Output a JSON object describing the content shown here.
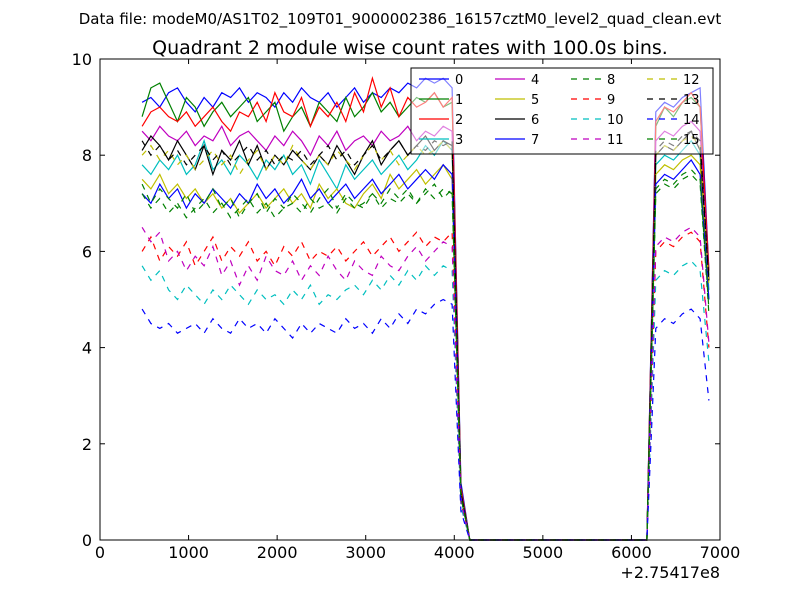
{
  "header": {
    "data_file": "Data file: modeM0/AS1T02_109T01_9000002386_16157cztM0_level2_quad_clean.evt"
  },
  "chart_data": {
    "type": "line",
    "title": "Quadrant 2 module wise count rates with 100.0s bins.",
    "xlabel": "",
    "ylabel": "",
    "x_offset_label": "+2.75417e8",
    "xlim": [
      0,
      7000
    ],
    "ylim": [
      0,
      10
    ],
    "x_ticks": [
      0,
      1000,
      2000,
      3000,
      4000,
      5000,
      6000,
      7000
    ],
    "y_ticks": [
      0,
      2,
      4,
      6,
      8,
      10
    ],
    "grid": false,
    "legend_position": "top-right",
    "legend_columns": 4,
    "x": [
      475,
      575,
      675,
      775,
      875,
      975,
      1075,
      1175,
      1275,
      1375,
      1475,
      1575,
      1675,
      1775,
      1875,
      1975,
      2075,
      2175,
      2275,
      2375,
      2475,
      2575,
      2675,
      2775,
      2875,
      2975,
      3075,
      3175,
      3275,
      3375,
      3475,
      3575,
      3675,
      3775,
      3875,
      3975,
      4075,
      4175,
      4275,
      4375,
      4475,
      4575,
      4675,
      4775,
      4875,
      4975,
      5075,
      5175,
      5275,
      5375,
      5475,
      5575,
      5675,
      5775,
      5875,
      5975,
      6075,
      6175,
      6275,
      6375,
      6475,
      6575,
      6675,
      6775,
      6875
    ],
    "series": [
      {
        "name": "0",
        "color": "#0000ff",
        "dash": "solid",
        "values": [
          9.1,
          9.2,
          9.0,
          9.3,
          9.4,
          9.1,
          8.9,
          9.2,
          9.0,
          9.3,
          9.2,
          9.4,
          9.1,
          9.3,
          9.2,
          9.0,
          9.3,
          9.1,
          9.4,
          9.2,
          9.1,
          9.3,
          9.0,
          9.2,
          9.4,
          9.1,
          9.3,
          9.2,
          9.4,
          9.3,
          9.5,
          9.4,
          9.6,
          9.5,
          9.6,
          9.4,
          1.2,
          0,
          0,
          0,
          0,
          0,
          0,
          0,
          0,
          0,
          0,
          0,
          0,
          0,
          0,
          0,
          0,
          0,
          0,
          0,
          0,
          0,
          8.9,
          9.1,
          9.0,
          9.2,
          9.3,
          9.4,
          5.6
        ]
      },
      {
        "name": "1",
        "color": "#008000",
        "dash": "solid",
        "values": [
          8.8,
          9.4,
          9.5,
          9.1,
          8.7,
          9.2,
          9.0,
          8.6,
          8.9,
          9.1,
          8.8,
          9.0,
          9.2,
          8.7,
          8.9,
          9.1,
          8.5,
          8.8,
          9.0,
          8.6,
          9.1,
          8.9,
          8.7,
          9.2,
          8.8,
          9.0,
          9.3,
          8.9,
          9.1,
          8.8,
          9.0,
          9.2,
          9.1,
          9.3,
          9.0,
          9.1,
          1.1,
          0,
          0,
          0,
          0,
          0,
          0,
          0,
          0,
          0,
          0,
          0,
          0,
          0,
          0,
          0,
          0,
          0,
          0,
          0,
          0,
          0,
          8.6,
          9.0,
          8.8,
          9.1,
          9.2,
          9.0,
          5.5
        ]
      },
      {
        "name": "2",
        "color": "#ff0000",
        "dash": "solid",
        "values": [
          8.6,
          8.9,
          9.0,
          8.8,
          8.7,
          8.9,
          8.6,
          8.8,
          9.0,
          8.7,
          8.5,
          8.9,
          8.8,
          9.1,
          8.7,
          9.3,
          8.9,
          8.8,
          9.2,
          8.6,
          9.0,
          8.8,
          9.1,
          8.7,
          9.3,
          8.9,
          9.6,
          9.0,
          9.4,
          8.8,
          9.2,
          9.0,
          9.1,
          9.3,
          9.0,
          9.2,
          1.1,
          0,
          0,
          0,
          0,
          0,
          0,
          0,
          0,
          0,
          0,
          0,
          0,
          0,
          0,
          0,
          0,
          0,
          0,
          0,
          0,
          0,
          8.7,
          9.0,
          8.9,
          9.1,
          9.3,
          9.0,
          5.6
        ]
      },
      {
        "name": "3",
        "color": "#00bfbf",
        "dash": "solid",
        "values": [
          7.8,
          7.6,
          7.9,
          7.7,
          8.0,
          7.6,
          7.8,
          8.3,
          7.7,
          7.9,
          7.6,
          8.0,
          7.8,
          7.5,
          7.9,
          7.7,
          8.0,
          7.6,
          7.8,
          7.4,
          7.9,
          7.6,
          7.3,
          7.8,
          7.5,
          7.7,
          7.9,
          7.6,
          7.8,
          8.0,
          7.7,
          7.9,
          8.2,
          8.0,
          8.3,
          8.1,
          1.0,
          0,
          0,
          0,
          0,
          0,
          0,
          0,
          0,
          0,
          0,
          0,
          0,
          0,
          0,
          0,
          0,
          0,
          0,
          0,
          0,
          0,
          7.8,
          8.0,
          7.9,
          8.1,
          8.3,
          8.0,
          5.2
        ]
      },
      {
        "name": "4",
        "color": "#bf00bf",
        "dash": "solid",
        "values": [
          8.5,
          8.3,
          8.6,
          8.4,
          8.3,
          8.5,
          8.2,
          8.4,
          8.3,
          8.6,
          8.2,
          8.4,
          8.5,
          8.3,
          8.1,
          8.4,
          8.2,
          8.5,
          8.3,
          8.0,
          8.4,
          8.2,
          8.5,
          8.1,
          8.3,
          8.4,
          8.2,
          8.5,
          8.3,
          8.4,
          8.6,
          8.3,
          8.5,
          8.4,
          8.6,
          8.5,
          1.0,
          0,
          0,
          0,
          0,
          0,
          0,
          0,
          0,
          0,
          0,
          0,
          0,
          0,
          0,
          0,
          0,
          0,
          0,
          0,
          0,
          0,
          8.3,
          8.5,
          8.4,
          8.6,
          8.7,
          8.5,
          5.4
        ]
      },
      {
        "name": "5",
        "color": "#bfbf00",
        "dash": "solid",
        "values": [
          7.5,
          7.3,
          7.6,
          7.2,
          7.4,
          7.1,
          7.3,
          7.0,
          7.2,
          6.9,
          7.1,
          6.8,
          7.0,
          7.2,
          6.9,
          7.1,
          7.3,
          7.0,
          7.2,
          6.9,
          7.4,
          7.1,
          7.3,
          7.0,
          6.9,
          7.2,
          7.4,
          7.1,
          7.6,
          7.3,
          7.5,
          7.7,
          7.4,
          7.6,
          7.8,
          7.5,
          0.9,
          0,
          0,
          0,
          0,
          0,
          0,
          0,
          0,
          0,
          0,
          0,
          0,
          0,
          0,
          0,
          0,
          0,
          0,
          0,
          0,
          0,
          7.6,
          7.8,
          7.7,
          7.9,
          8.0,
          7.8,
          5.0
        ]
      },
      {
        "name": "6",
        "color": "#000000",
        "dash": "solid",
        "values": [
          8.1,
          8.4,
          8.2,
          7.9,
          8.3,
          8.0,
          7.7,
          8.2,
          7.6,
          8.1,
          7.9,
          8.3,
          7.8,
          8.2,
          7.7,
          8.0,
          7.8,
          8.1,
          7.9,
          7.7,
          8.0,
          7.8,
          8.2,
          7.9,
          7.6,
          8.0,
          8.3,
          7.8,
          8.1,
          8.3,
          8.0,
          8.2,
          8.4,
          8.1,
          8.3,
          8.2,
          1.0,
          0,
          0,
          0,
          0,
          0,
          0,
          0,
          0,
          0,
          0,
          0,
          0,
          0,
          0,
          0,
          0,
          0,
          0,
          0,
          0,
          0,
          8.0,
          8.2,
          8.1,
          8.3,
          8.5,
          8.1,
          5.4
        ]
      },
      {
        "name": "7",
        "color": "#0000ff",
        "dash": "solid",
        "values": [
          7.2,
          7.0,
          7.4,
          7.1,
          7.3,
          6.9,
          7.2,
          7.0,
          7.3,
          7.1,
          6.9,
          7.2,
          7.0,
          7.4,
          7.1,
          7.3,
          7.0,
          7.2,
          7.5,
          7.1,
          7.3,
          7.0,
          7.2,
          7.4,
          7.1,
          7.3,
          7.5,
          7.2,
          7.4,
          7.6,
          7.3,
          7.5,
          7.7,
          7.5,
          7.8,
          7.6,
          0.9,
          0,
          0,
          0,
          0,
          0,
          0,
          0,
          0,
          0,
          0,
          0,
          0,
          0,
          0,
          0,
          0,
          0,
          0,
          0,
          0,
          0,
          7.4,
          7.6,
          7.5,
          7.7,
          7.9,
          7.6,
          5.0
        ]
      },
      {
        "name": "8",
        "color": "#008000",
        "dash": "dashed",
        "values": [
          7.4,
          7.0,
          7.3,
          7.1,
          6.9,
          7.2,
          6.8,
          7.0,
          7.3,
          6.9,
          7.1,
          6.7,
          7.0,
          7.2,
          6.8,
          7.1,
          6.9,
          7.2,
          7.0,
          6.8,
          7.1,
          7.3,
          6.9,
          7.2,
          7.0,
          6.9,
          7.2,
          7.0,
          7.3,
          7.1,
          7.3,
          7.0,
          7.2,
          7.4,
          7.1,
          7.3,
          0.9,
          0,
          0,
          0,
          0,
          0,
          0,
          0,
          0,
          0,
          0,
          0,
          0,
          0,
          0,
          0,
          0,
          0,
          0,
          0,
          0,
          0,
          7.3,
          7.5,
          7.4,
          7.6,
          7.7,
          7.5,
          4.8
        ]
      },
      {
        "name": "9",
        "color": "#ff0000",
        "dash": "dashed",
        "values": [
          6.0,
          6.3,
          5.8,
          6.1,
          5.9,
          6.2,
          5.7,
          6.0,
          6.3,
          5.8,
          6.1,
          5.9,
          6.2,
          5.8,
          6.0,
          5.7,
          6.1,
          5.9,
          6.2,
          5.8,
          6.0,
          5.9,
          6.1,
          5.8,
          6.0,
          6.2,
          5.9,
          6.1,
          6.3,
          6.0,
          6.2,
          6.4,
          6.1,
          6.3,
          6.2,
          6.4,
          0.8,
          0,
          0,
          0,
          0,
          0,
          0,
          0,
          0,
          0,
          0,
          0,
          0,
          0,
          0,
          0,
          0,
          0,
          0,
          0,
          0,
          0,
          6.0,
          6.2,
          6.1,
          6.3,
          6.4,
          6.2,
          4.0
        ]
      },
      {
        "name": "10",
        "color": "#00bfbf",
        "dash": "dashed",
        "values": [
          5.7,
          5.4,
          5.6,
          5.2,
          5.0,
          5.3,
          5.1,
          4.9,
          5.2,
          5.0,
          5.3,
          5.1,
          4.9,
          5.2,
          5.0,
          5.1,
          4.9,
          5.2,
          5.0,
          5.3,
          4.9,
          5.1,
          5.0,
          5.2,
          5.3,
          5.1,
          5.4,
          5.2,
          5.5,
          5.3,
          5.6,
          5.4,
          5.7,
          5.5,
          5.7,
          5.6,
          0.7,
          0,
          0,
          0,
          0,
          0,
          0,
          0,
          0,
          0,
          0,
          0,
          0,
          0,
          0,
          0,
          0,
          0,
          0,
          0,
          0,
          0,
          5.4,
          5.6,
          5.5,
          5.7,
          5.8,
          5.6,
          3.7
        ]
      },
      {
        "name": "11",
        "color": "#bf00bf",
        "dash": "dashed",
        "values": [
          6.5,
          6.2,
          6.4,
          5.8,
          6.0,
          5.6,
          5.9,
          5.7,
          6.1,
          5.5,
          5.8,
          5.3,
          5.7,
          5.4,
          5.9,
          5.6,
          5.5,
          5.8,
          5.4,
          5.7,
          5.5,
          5.9,
          5.6,
          5.4,
          5.8,
          5.6,
          5.5,
          5.9,
          5.7,
          5.6,
          5.9,
          6.1,
          5.8,
          6.0,
          6.2,
          6.1,
          0.8,
          0,
          0,
          0,
          0,
          0,
          0,
          0,
          0,
          0,
          0,
          0,
          0,
          0,
          0,
          0,
          0,
          0,
          0,
          0,
          0,
          0,
          6.1,
          6.3,
          6.2,
          6.4,
          6.5,
          6.3,
          4.1
        ]
      },
      {
        "name": "12",
        "color": "#bfbf00",
        "dash": "dashed",
        "values": [
          8.0,
          8.2,
          7.9,
          8.1,
          7.8,
          8.0,
          7.7,
          7.9,
          8.1,
          7.8,
          8.0,
          7.6,
          7.9,
          8.1,
          7.7,
          8.0,
          7.8,
          8.2,
          7.9,
          7.7,
          8.0,
          7.8,
          8.1,
          7.9,
          7.7,
          8.0,
          8.2,
          7.9,
          8.1,
          7.8,
          8.0,
          8.2,
          8.0,
          8.1,
          8.3,
          8.1,
          1.0,
          0,
          0,
          0,
          0,
          0,
          0,
          0,
          0,
          0,
          0,
          0,
          0,
          0,
          0,
          0,
          0,
          0,
          0,
          0,
          0,
          0,
          8.0,
          8.2,
          8.1,
          8.3,
          8.4,
          8.2,
          5.3
        ]
      },
      {
        "name": "13",
        "color": "#000000",
        "dash": "dashed",
        "values": [
          8.3,
          8.0,
          8.2,
          7.9,
          8.1,
          7.8,
          8.0,
          8.2,
          7.9,
          8.1,
          7.8,
          8.0,
          8.2,
          7.9,
          8.1,
          7.8,
          8.0,
          7.9,
          8.1,
          7.8,
          8.0,
          8.2,
          7.9,
          8.1,
          7.8,
          8.0,
          8.2,
          7.9,
          8.1,
          8.3,
          8.0,
          8.2,
          8.1,
          8.3,
          8.2,
          8.3,
          1.0,
          0,
          0,
          0,
          0,
          0,
          0,
          0,
          0,
          0,
          0,
          0,
          0,
          0,
          0,
          0,
          0,
          0,
          0,
          0,
          0,
          0,
          8.1,
          8.3,
          8.2,
          8.4,
          8.5,
          8.3,
          5.4
        ]
      },
      {
        "name": "14",
        "color": "#0000ff",
        "dash": "dashed",
        "values": [
          4.8,
          4.5,
          4.4,
          4.5,
          4.3,
          4.4,
          4.5,
          4.3,
          4.6,
          4.4,
          4.3,
          4.6,
          4.4,
          4.5,
          4.3,
          4.6,
          4.4,
          4.2,
          4.5,
          4.3,
          4.5,
          4.4,
          4.3,
          4.6,
          4.4,
          4.5,
          4.3,
          4.6,
          4.4,
          4.7,
          4.5,
          4.8,
          4.7,
          4.9,
          5.0,
          4.9,
          0.6,
          0,
          0,
          0,
          0,
          0,
          0,
          0,
          0,
          0,
          0,
          0,
          0,
          0,
          0,
          0,
          0,
          0,
          0,
          0,
          0,
          0,
          4.4,
          4.6,
          4.5,
          4.7,
          4.8,
          4.6,
          2.9
        ]
      },
      {
        "name": "15",
        "color": "#008000",
        "dash": "dashed",
        "values": [
          7.2,
          6.9,
          7.1,
          6.8,
          7.0,
          6.7,
          6.9,
          7.1,
          6.8,
          7.0,
          6.7,
          6.9,
          7.1,
          6.8,
          7.0,
          6.7,
          6.9,
          7.0,
          6.8,
          7.1,
          6.9,
          7.0,
          6.8,
          7.1,
          6.9,
          7.0,
          7.2,
          6.9,
          7.1,
          7.0,
          7.2,
          7.0,
          7.3,
          7.1,
          7.3,
          7.2,
          0.9,
          0,
          0,
          0,
          0,
          0,
          0,
          0,
          0,
          0,
          0,
          0,
          0,
          0,
          0,
          0,
          0,
          0,
          0,
          0,
          0,
          0,
          7.2,
          7.4,
          7.3,
          7.5,
          7.6,
          7.4,
          4.7
        ]
      }
    ]
  }
}
